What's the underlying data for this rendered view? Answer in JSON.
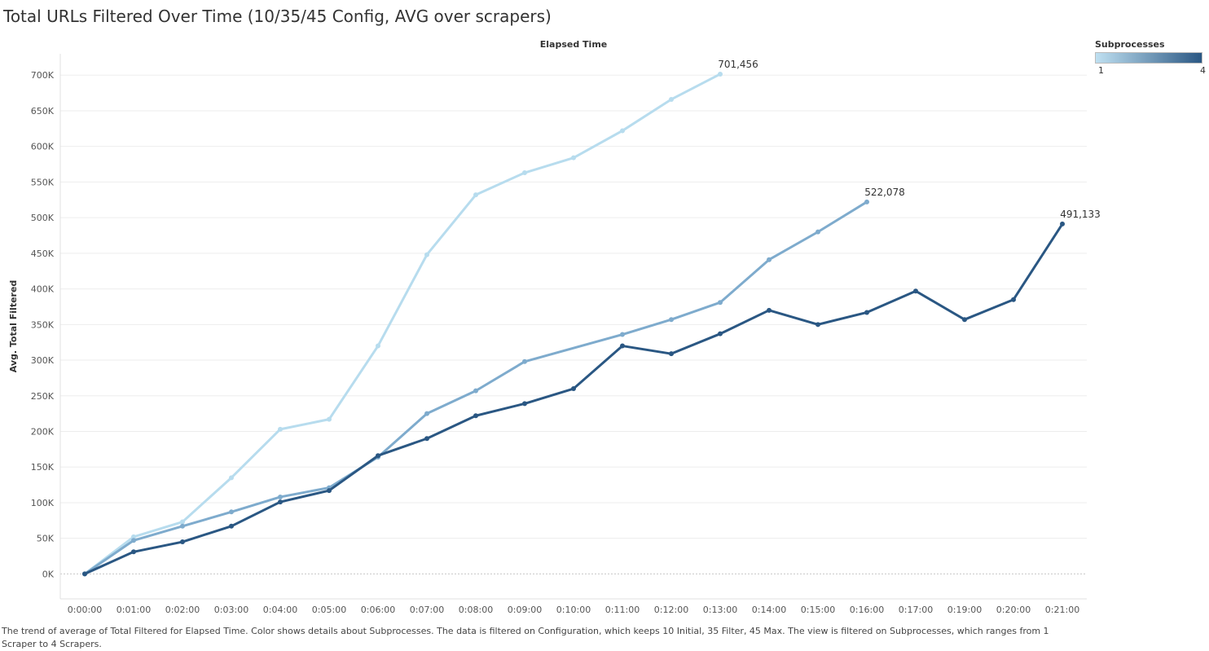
{
  "title": "Total URLs Filtered Over Time (10/35/45 Config, AVG over scrapers)",
  "caption": "The trend of average of Total Filtered for Elapsed Time.  Color shows details about Subprocesses. The data is filtered on Configuration, which keeps 10 Initial, 35 Filter, 45 Max. The view is filtered on Subprocesses, which ranges from 1 Scraper to 4 Scrapers.",
  "legend": {
    "title": "Subprocesses",
    "min_label": "1",
    "max_label": "4",
    "gradient_start": "#bfe0f1",
    "gradient_end": "#2a5783"
  },
  "chart_data": {
    "type": "line",
    "title": "Total URLs Filtered Over Time (10/35/45 Config, AVG over scrapers)",
    "xlabel": "Elapsed Time",
    "ylabel": "Avg. Total Filtered",
    "categories": [
      "0:00:00",
      "0:01:00",
      "0:02:00",
      "0:03:00",
      "0:04:00",
      "0:05:00",
      "0:06:00",
      "0:07:00",
      "0:08:00",
      "0:09:00",
      "0:10:00",
      "0:11:00",
      "0:12:00",
      "0:13:00",
      "0:14:00",
      "0:15:00",
      "0:16:00",
      "0:17:00",
      "0:19:00",
      "0:20:00",
      "0:21:00"
    ],
    "ylim": [
      -35000,
      730000
    ],
    "yticks": [
      0,
      50000,
      100000,
      150000,
      200000,
      250000,
      300000,
      350000,
      400000,
      450000,
      500000,
      550000,
      600000,
      650000,
      700000
    ],
    "ytick_labels": [
      "0K",
      "50K",
      "100K",
      "150K",
      "200K",
      "250K",
      "300K",
      "350K",
      "400K",
      "450K",
      "500K",
      "550K",
      "600K",
      "650K",
      "700K"
    ],
    "grid": true,
    "legend_position": "top-right",
    "series": [
      {
        "color": "#b7dcee",
        "values": [
          0,
          52000,
          73000,
          135000,
          203000,
          217000,
          320000,
          448000,
          532000,
          563000,
          584000,
          622000,
          666000,
          701456,
          null,
          null,
          null,
          null,
          null,
          null,
          null
        ],
        "end_label": "701,456"
      },
      {
        "color": "#7eabcd",
        "values": [
          0,
          47000,
          67000,
          87000,
          108000,
          121000,
          164000,
          225000,
          257000,
          298000,
          null,
          336000,
          357000,
          381000,
          441000,
          480000,
          522078,
          null,
          null,
          null,
          null
        ],
        "end_label": "522,078"
      },
      {
        "color": "#2a5783",
        "values": [
          0,
          31000,
          45000,
          67000,
          101000,
          117000,
          166000,
          190000,
          222000,
          239000,
          260000,
          320000,
          309000,
          337000,
          370000,
          350000,
          367000,
          397000,
          357000,
          385000,
          491133
        ],
        "end_label": "491,133"
      }
    ]
  }
}
